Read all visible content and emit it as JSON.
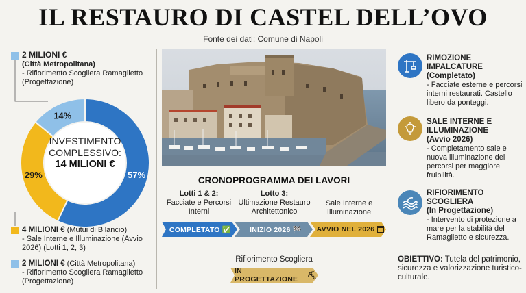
{
  "header": {
    "title": "IL RESTAURO DI CASTEL DELL’OVO",
    "source": "Fonte dei dati: Comune di Napoli"
  },
  "funding": {
    "top": {
      "amount": "2 MILIONI €",
      "funder": "(Città Metropolitana)",
      "desc": "- Rifiorimento Scogliera Ramaglietto (Progettazione)",
      "color": "#8fc0e8"
    },
    "bottom1": {
      "amount": "4 MILIONI €",
      "funder": " (Mutui di Bilancio)",
      "desc": "- Sale Interne e Illuminazione (Avvio 2026) (Lotti 1, 2, 3)",
      "color": "#f2b81c"
    },
    "bottom2": {
      "amount": "2 MILIONI €",
      "funder": " (Città Metropolitana)",
      "desc": "- Rifiorimento Scogliera Ramaglietto (Progettazione)",
      "color": "#8fc0e8"
    }
  },
  "chart_data": {
    "type": "pie",
    "donut": true,
    "slices": [
      {
        "label": "57%",
        "value": 57,
        "color": "#2e75c4"
      },
      {
        "label": "29%",
        "value": 29,
        "color": "#f2b81c"
      },
      {
        "label": "14%",
        "value": 14,
        "color": "#8fc0e8"
      }
    ],
    "center_line1": "INVESTIMENTO",
    "center_line2": "COMPLESSIVO:",
    "center_line3": "14 MILIONI €"
  },
  "timeline": {
    "title": "CRONOPROGRAMMA DEI LAVORI",
    "phases": [
      {
        "head": "Lotti 1 & 2:",
        "label": "Facciate e Percorsi Interni",
        "badge": "COMPLETATO ✅",
        "color": "#2e75c4"
      },
      {
        "head": "Lotto 3:",
        "label": "Ultimazione Restauro Architettonico",
        "badge": "INIZIO 2026 🏁",
        "color": "#6f8ea8"
      },
      {
        "head": "",
        "label": "Sale Interne e Illuminazione",
        "badge": "AVVIO NEL 2026",
        "color": "#e0b03b"
      }
    ],
    "sub_label": "Rifiorimento Scogliera",
    "sub_badge": "IN PROGETTAZIONE",
    "sub_color": "#d9b868"
  },
  "status": [
    {
      "icon": "crane-icon",
      "color": "#2e75c4",
      "title": "RIMOZIONE IMPALCATURE",
      "status": "(Completato)",
      "desc": "- Facciate esterne e percorsi interni restaurati. Castello libero da ponteggi."
    },
    {
      "icon": "lightbulb-icon",
      "color": "#c49a3a",
      "title": "SALE INTERNE E ILLUMINAZIONE",
      "status": "(Avvio 2026)",
      "desc": "- Completamento sale e nuova illuminazione dei percorsi per maggiore fruibilità."
    },
    {
      "icon": "waves-icon",
      "color": "#4a86b8",
      "title": "RIFIORIMENTO SCOGLIERA",
      "status": "(In Progettazione)",
      "desc": "- Intervento di protezione a mare per la stabilità del Ramaglietto e sicurezza."
    }
  ],
  "objective": {
    "label": "OBIETTIVO:",
    "text": " Tutela del patrimonio, sicurezza e valorizzazione turistico-culturale."
  }
}
